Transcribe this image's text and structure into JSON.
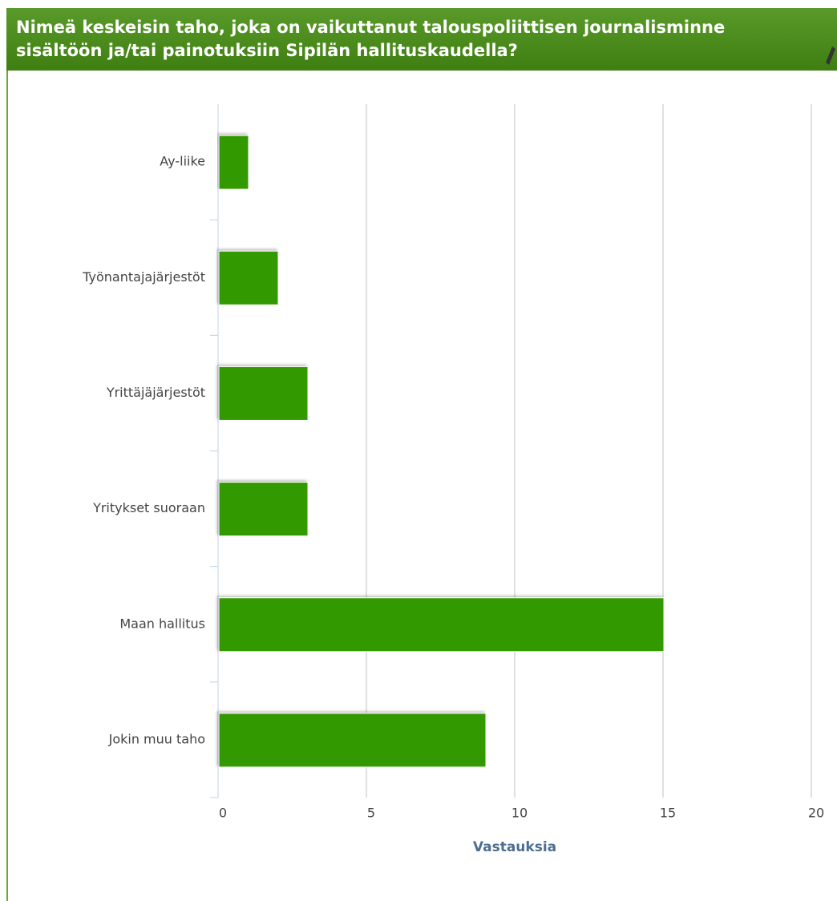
{
  "header": {
    "title_lines": [
      "Nimeä keskeisin taho, joka on vaikuttanut talouspoliittisen journalisminne",
      "sisältöön ja/tai painotuksiin Sipilän hallituskaudella?"
    ]
  },
  "chart_data": {
    "type": "bar",
    "orientation": "horizontal",
    "categories": [
      "Ay-liike",
      "Työnantajajärjestöt",
      "Yrittäjäjärjestöt",
      "Yritykset suoraan",
      "Maan hallitus",
      "Jokin muu taho"
    ],
    "values": [
      1,
      2,
      3,
      3,
      15,
      9
    ],
    "color": "#339900",
    "xlim": [
      0,
      20
    ],
    "xticks": [
      0,
      5,
      10,
      15,
      20
    ],
    "xlabel": "Vastauksia",
    "grid": true
  }
}
